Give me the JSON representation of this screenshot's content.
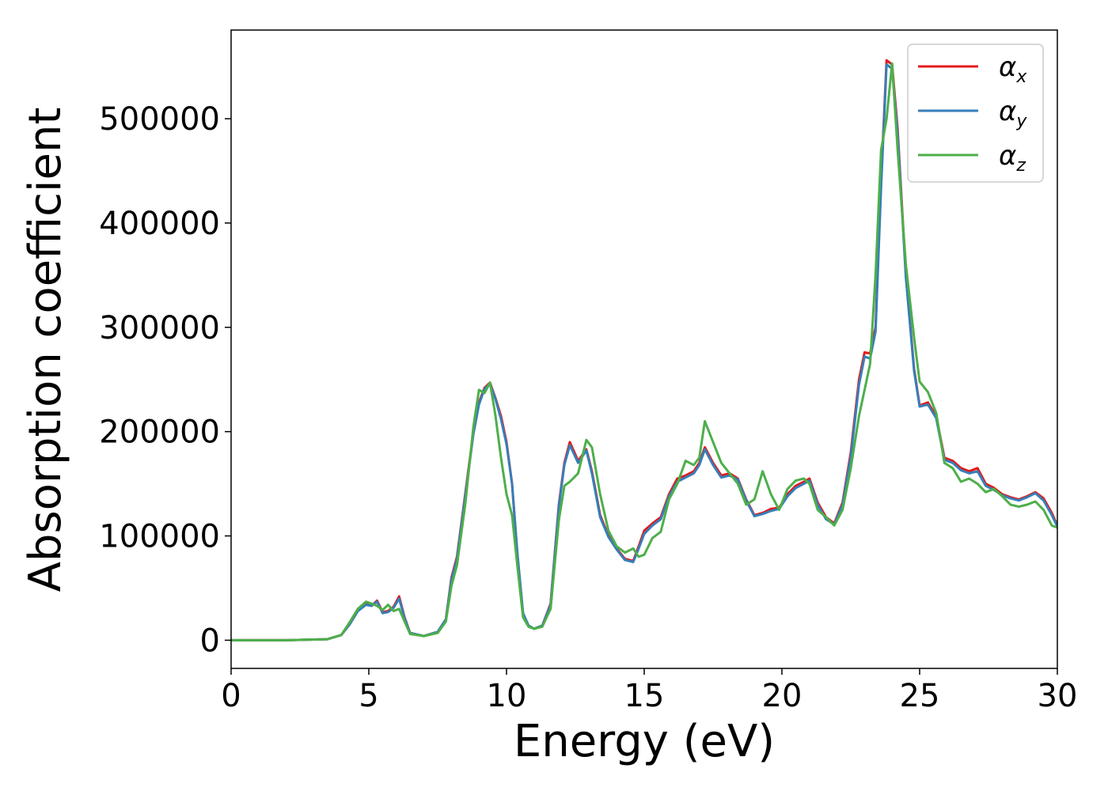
{
  "chart_data": {
    "type": "line",
    "xlabel": "Energy (eV)",
    "ylabel": "Absorption coefficient",
    "xlim": [
      0,
      30
    ],
    "ylim": [
      -27000,
      585000
    ],
    "xticks": [
      0,
      5,
      10,
      15,
      20,
      25,
      30
    ],
    "yticks": [
      0,
      100000,
      200000,
      300000,
      400000,
      500000
    ],
    "grid": false,
    "legend_position": "upper right",
    "series": [
      {
        "name": "α_x",
        "symbol": "α",
        "subscript": "x",
        "color": "#e41a1c",
        "x": [
          0,
          2,
          3.5,
          4,
          4.3,
          4.6,
          4.9,
          5.1,
          5.3,
          5.5,
          5.7,
          5.9,
          6.1,
          6.3,
          6.5,
          7,
          7.5,
          7.8,
          8,
          8.2,
          8.5,
          8.8,
          9,
          9.2,
          9.4,
          9.6,
          9.8,
          10,
          10.2,
          10.4,
          10.6,
          10.8,
          11,
          11.3,
          11.6,
          11.9,
          12.1,
          12.3,
          12.6,
          12.9,
          13.1,
          13.4,
          13.7,
          14,
          14.3,
          14.6,
          14.8,
          15,
          15.3,
          15.6,
          15.9,
          16.2,
          16.5,
          16.8,
          17,
          17.2,
          17.5,
          17.8,
          18.1,
          18.4,
          18.7,
          19,
          19.3,
          19.6,
          19.9,
          20.2,
          20.5,
          20.8,
          21,
          21.3,
          21.6,
          21.9,
          22.2,
          22.5,
          22.8,
          23,
          23.2,
          23.4,
          23.6,
          23.8,
          24,
          24.2,
          24.5,
          24.8,
          25,
          25.3,
          25.6,
          25.9,
          26.2,
          26.5,
          26.8,
          27.1,
          27.4,
          27.7,
          28,
          28.3,
          28.6,
          28.9,
          29.2,
          29.5,
          29.8,
          30
        ],
        "y": [
          0,
          0,
          1000,
          5000,
          15000,
          28000,
          35000,
          33000,
          38000,
          27000,
          28000,
          32000,
          42000,
          22000,
          7000,
          4000,
          8000,
          20000,
          60000,
          80000,
          140000,
          200000,
          228000,
          242000,
          247000,
          232000,
          215000,
          190000,
          150000,
          80000,
          25000,
          14000,
          11000,
          14000,
          35000,
          130000,
          170000,
          190000,
          172000,
          183000,
          162000,
          120000,
          100000,
          88000,
          78000,
          76000,
          90000,
          105000,
          112000,
          118000,
          140000,
          155000,
          158000,
          162000,
          170000,
          185000,
          170000,
          158000,
          160000,
          155000,
          135000,
          120000,
          122000,
          126000,
          127000,
          140000,
          148000,
          152000,
          155000,
          132000,
          118000,
          112000,
          132000,
          180000,
          250000,
          276000,
          275000,
          300000,
          440000,
          556000,
          552000,
          490000,
          350000,
          260000,
          225000,
          228000,
          215000,
          175000,
          172000,
          165000,
          162000,
          165000,
          150000,
          146000,
          140000,
          137000,
          135000,
          138000,
          142000,
          136000,
          122000,
          110000
        ]
      },
      {
        "name": "α_y",
        "symbol": "α",
        "subscript": "y",
        "color": "#377eb8",
        "x": [
          0,
          2,
          3.5,
          4,
          4.3,
          4.6,
          4.9,
          5.1,
          5.3,
          5.5,
          5.7,
          5.9,
          6.1,
          6.3,
          6.5,
          7,
          7.5,
          7.8,
          8,
          8.2,
          8.5,
          8.8,
          9,
          9.2,
          9.4,
          9.6,
          9.8,
          10,
          10.2,
          10.4,
          10.6,
          10.8,
          11,
          11.3,
          11.6,
          11.9,
          12.1,
          12.3,
          12.6,
          12.9,
          13.1,
          13.4,
          13.7,
          14,
          14.3,
          14.6,
          14.8,
          15,
          15.3,
          15.6,
          15.9,
          16.2,
          16.5,
          16.8,
          17,
          17.2,
          17.5,
          17.8,
          18.1,
          18.4,
          18.7,
          19,
          19.3,
          19.6,
          19.9,
          20.2,
          20.5,
          20.8,
          21,
          21.3,
          21.6,
          21.9,
          22.2,
          22.5,
          22.8,
          23,
          23.2,
          23.4,
          23.6,
          23.8,
          24,
          24.2,
          24.5,
          24.8,
          25,
          25.3,
          25.6,
          25.9,
          26.2,
          26.5,
          26.8,
          27.1,
          27.4,
          27.7,
          28,
          28.3,
          28.6,
          28.9,
          29.2,
          29.5,
          29.8,
          30
        ],
        "y": [
          0,
          0,
          1000,
          5000,
          15000,
          28000,
          34000,
          33000,
          37000,
          26000,
          27000,
          31000,
          40000,
          21000,
          7000,
          4000,
          8000,
          20000,
          58000,
          78000,
          138000,
          198000,
          226000,
          241000,
          246000,
          231000,
          212000,
          188000,
          150000,
          82000,
          26000,
          14000,
          11000,
          14000,
          34000,
          128000,
          168000,
          187000,
          170000,
          182000,
          160000,
          118000,
          99000,
          87000,
          77000,
          75000,
          88000,
          102000,
          110000,
          116000,
          138000,
          152000,
          156000,
          160000,
          168000,
          183000,
          168000,
          156000,
          158000,
          154000,
          134000,
          119000,
          121000,
          124000,
          126000,
          138000,
          146000,
          150000,
          153000,
          130000,
          116000,
          111000,
          130000,
          176000,
          245000,
          272000,
          270000,
          296000,
          435000,
          552000,
          548000,
          485000,
          348000,
          258000,
          224000,
          226000,
          213000,
          173000,
          170000,
          163000,
          160000,
          162000,
          148000,
          144000,
          139000,
          136000,
          134000,
          137000,
          141000,
          134000,
          120000,
          109000
        ]
      },
      {
        "name": "α_z",
        "symbol": "α",
        "subscript": "z",
        "color": "#4daf4a",
        "x": [
          0,
          2,
          3.5,
          4,
          4.3,
          4.6,
          4.9,
          5.1,
          5.3,
          5.5,
          5.7,
          5.9,
          6.1,
          6.3,
          6.5,
          7,
          7.5,
          7.8,
          8,
          8.2,
          8.5,
          8.8,
          9,
          9.2,
          9.4,
          9.6,
          9.8,
          10,
          10.2,
          10.4,
          10.6,
          10.8,
          11,
          11.3,
          11.6,
          11.9,
          12.1,
          12.3,
          12.6,
          12.9,
          13.1,
          13.4,
          13.7,
          14,
          14.3,
          14.6,
          14.8,
          15,
          15.3,
          15.6,
          15.9,
          16.2,
          16.5,
          16.8,
          17,
          17.2,
          17.5,
          17.8,
          18.1,
          18.4,
          18.7,
          19,
          19.3,
          19.6,
          19.9,
          20.2,
          20.5,
          20.8,
          21,
          21.3,
          21.6,
          21.9,
          22.2,
          22.5,
          22.8,
          23,
          23.2,
          23.4,
          23.6,
          23.8,
          24,
          24.2,
          24.5,
          24.8,
          25,
          25.3,
          25.6,
          25.9,
          26.2,
          26.5,
          26.8,
          27.1,
          27.4,
          27.7,
          28,
          28.3,
          28.6,
          28.9,
          29.2,
          29.5,
          29.8,
          30
        ],
        "y": [
          0,
          0,
          1000,
          5000,
          17000,
          30000,
          37000,
          35000,
          33000,
          29000,
          34000,
          28000,
          30000,
          18000,
          6000,
          4000,
          7000,
          18000,
          52000,
          72000,
          130000,
          205000,
          240000,
          237000,
          247000,
          215000,
          175000,
          140000,
          120000,
          70000,
          22000,
          13000,
          11000,
          13000,
          30000,
          115000,
          148000,
          152000,
          160000,
          192000,
          185000,
          140000,
          105000,
          90000,
          84000,
          88000,
          80000,
          82000,
          98000,
          104000,
          135000,
          150000,
          172000,
          168000,
          175000,
          210000,
          190000,
          170000,
          160000,
          150000,
          130000,
          135000,
          162000,
          140000,
          125000,
          145000,
          153000,
          155000,
          150000,
          125000,
          118000,
          110000,
          125000,
          165000,
          215000,
          240000,
          265000,
          350000,
          470000,
          500000,
          553000,
          470000,
          360000,
          290000,
          248000,
          238000,
          218000,
          170000,
          165000,
          152000,
          155000,
          150000,
          142000,
          145000,
          138000,
          130000,
          128000,
          130000,
          133000,
          125000,
          110000,
          108000
        ]
      }
    ]
  }
}
